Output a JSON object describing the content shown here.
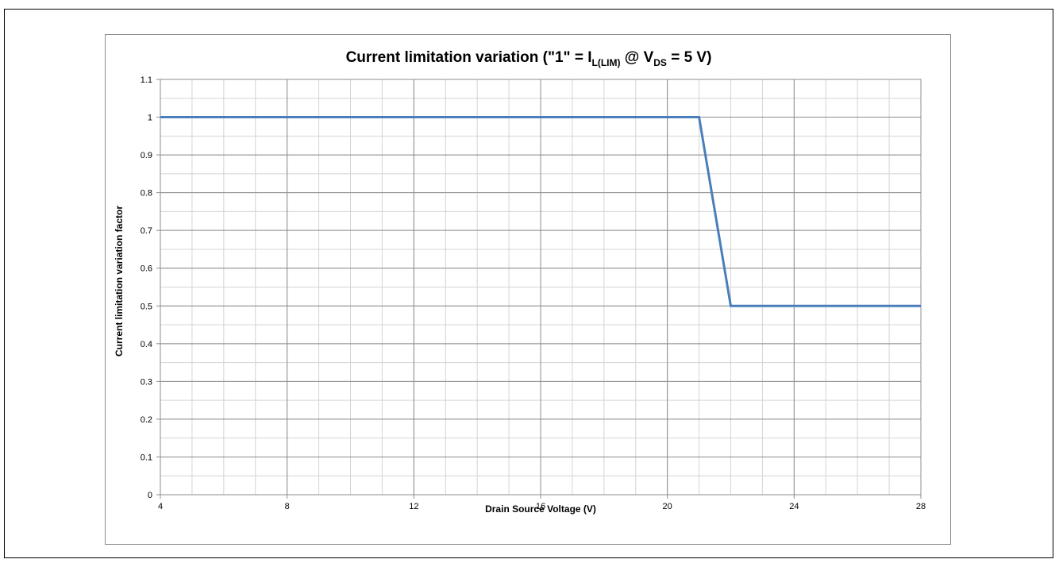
{
  "chart_data": {
    "type": "line",
    "title": {
      "prefix": "Current limitation variation (\"1\" = I",
      "sub1": "L(LIM)",
      "middle": " @ V",
      "sub2": "DS",
      "suffix": " = 5 V)"
    },
    "xlabel": "Drain Source Voltage (V)",
    "ylabel": "Current limitation variation factor",
    "xlim": [
      4,
      28
    ],
    "ylim": [
      0,
      1.1
    ],
    "x_ticks": [
      4,
      8,
      12,
      16,
      20,
      24,
      28
    ],
    "x_tick_labels": [
      "4",
      "8",
      "12",
      "16",
      "20",
      "24",
      "28"
    ],
    "y_ticks": [
      0,
      0.1,
      0.2,
      0.3,
      0.4,
      0.5,
      0.6,
      0.7,
      0.8,
      0.9,
      1,
      1.1
    ],
    "y_tick_labels": [
      "0",
      "0.1",
      "0.2",
      "0.3",
      "0.4",
      "0.5",
      "0.6",
      "0.7",
      "0.8",
      "0.9",
      "1",
      "1.1"
    ],
    "x_minor_step": 1,
    "y_minor_step": 0.05,
    "grid": true,
    "series": [
      {
        "x": [
          4,
          21,
          22,
          28
        ],
        "y": [
          1,
          1,
          0.5,
          0.5
        ],
        "color": "#4a7ebb"
      }
    ],
    "colors": {
      "major_grid": "#8c8c8c",
      "minor_grid": "#d4d4d4",
      "series": "#4a7ebb"
    }
  }
}
